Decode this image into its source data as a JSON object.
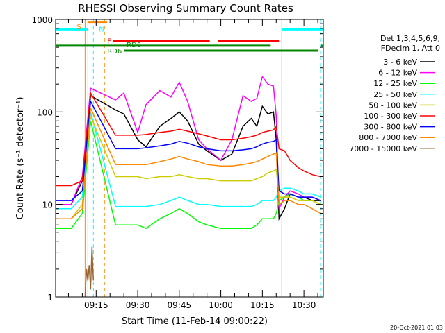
{
  "chart_data": {
    "type": "line",
    "title": "RHESSI Observing Summary Count Rates",
    "xlabel": "Start Time (11-Feb-14 09:00:22)",
    "ylabel": "Count Rate (s⁻¹ detector⁻¹)",
    "x_range": [
      "09:00:22",
      "10:37:00"
    ],
    "ylim": [
      1,
      1000
    ],
    "yscale": "log",
    "x_ticks": [
      "09:15",
      "09:30",
      "09:45",
      "10:00",
      "10:15",
      "10:30"
    ],
    "y_ticks": [
      "1",
      "10",
      "100",
      "1000"
    ],
    "grid": false,
    "legend_position": "right",
    "legend_header": [
      "Det 1,3,4,5,6,9,",
      "FDecim 1, Att 0"
    ],
    "footer_date": "20-Oct-2021 01:03",
    "series": [
      {
        "name": "3 - 6 keV",
        "color": "#000000",
        "x": [
          "09:00:22",
          "09:06",
          "09:10",
          "09:13",
          "09:22",
          "09:25",
          "09:30",
          "09:33",
          "09:38",
          "09:42",
          "09:45",
          "09:48",
          "09:52",
          "09:55",
          "10:00",
          "10:04",
          "10:08",
          "10:11",
          "10:13",
          "10:15",
          "10:17",
          "10:19",
          "10:20",
          "10:21",
          "10:23",
          "10:25",
          "10:28",
          "10:30",
          "10:33",
          "10:36"
        ],
        "y": [
          10,
          10,
          18,
          150,
          105,
          95,
          50,
          42,
          70,
          85,
          100,
          80,
          45,
          38,
          30,
          35,
          70,
          85,
          70,
          115,
          95,
          100,
          50,
          7,
          9,
          13,
          12,
          12,
          11,
          11
        ]
      },
      {
        "name": "6 - 12 keV",
        "color": "#ff00ff",
        "x": [
          "09:00:22",
          "09:06",
          "09:10",
          "09:13",
          "09:22",
          "09:25",
          "09:30",
          "09:33",
          "09:38",
          "09:42",
          "09:45",
          "09:48",
          "09:52",
          "09:55",
          "10:00",
          "10:04",
          "10:08",
          "10:11",
          "10:13",
          "10:15",
          "10:17",
          "10:19",
          "10:20",
          "10:21",
          "10:23",
          "10:25",
          "10:28",
          "10:30",
          "10:33",
          "10:36"
        ],
        "y": [
          10,
          10,
          20,
          180,
          135,
          160,
          60,
          120,
          170,
          145,
          210,
          130,
          50,
          40,
          30,
          50,
          150,
          130,
          140,
          240,
          200,
          190,
          90,
          9,
          12,
          14,
          13,
          12,
          12,
          11
        ]
      },
      {
        "name": "12 - 25 keV",
        "color": "#00ff00",
        "x": [
          "09:00:22",
          "09:06",
          "09:10",
          "09:13",
          "09:22",
          "09:25",
          "09:30",
          "09:33",
          "09:38",
          "09:42",
          "09:45",
          "09:48",
          "09:52",
          "09:55",
          "10:00",
          "10:04",
          "10:08",
          "10:11",
          "10:13",
          "10:15",
          "10:17",
          "10:19",
          "10:20",
          "10:21",
          "10:23",
          "10:25",
          "10:28",
          "10:30",
          "10:33",
          "10:36"
        ],
        "y": [
          5.5,
          5.5,
          8,
          80,
          6,
          6,
          6,
          5.5,
          7,
          8,
          9,
          8,
          6.5,
          6,
          5.5,
          5.5,
          5.5,
          5.5,
          6,
          7,
          7,
          7,
          8,
          11,
          12,
          13,
          12,
          11,
          11,
          10
        ]
      },
      {
        "name": "25 - 50 keV",
        "color": "#00ffff",
        "x": [
          "09:00:22",
          "09:06",
          "09:10",
          "09:13",
          "09:22",
          "09:25",
          "09:30",
          "09:33",
          "09:38",
          "09:42",
          "09:45",
          "09:48",
          "09:52",
          "09:55",
          "10:00",
          "10:04",
          "10:08",
          "10:11",
          "10:13",
          "10:15",
          "10:17",
          "10:19",
          "10:20",
          "10:21",
          "10:23",
          "10:25",
          "10:28",
          "10:30",
          "10:33",
          "10:36"
        ],
        "y": [
          9,
          9,
          12,
          100,
          9.5,
          9.5,
          9.5,
          9.5,
          10,
          11,
          12,
          11,
          10,
          10,
          9.5,
          9.5,
          9.5,
          9.5,
          10,
          11,
          11,
          11,
          12,
          14,
          15,
          15,
          14,
          13,
          13,
          12
        ]
      },
      {
        "name": "50 - 100 keV",
        "color": "#cccc00",
        "x": [
          "09:00:22",
          "09:06",
          "09:10",
          "09:13",
          "09:22",
          "09:25",
          "09:30",
          "09:33",
          "09:38",
          "09:42",
          "09:45",
          "09:48",
          "09:52",
          "09:55",
          "10:00",
          "10:04",
          "10:08",
          "10:11",
          "10:13",
          "10:15",
          "10:17",
          "10:19",
          "10:20",
          "10:21",
          "10:23",
          "10:25",
          "10:28",
          "10:30",
          "10:33",
          "10:36"
        ],
        "y": [
          7,
          7,
          10,
          90,
          20,
          20,
          20,
          19,
          20,
          20,
          21,
          20,
          19,
          19,
          18,
          18,
          18,
          18,
          19,
          20,
          22,
          23,
          24,
          12,
          12,
          12,
          11,
          11,
          11,
          10
        ]
      },
      {
        "name": "100 - 300 keV",
        "color": "#ff0000",
        "x": [
          "09:00:22",
          "09:06",
          "09:10",
          "09:13",
          "09:22",
          "09:25",
          "09:30",
          "09:33",
          "09:38",
          "09:42",
          "09:45",
          "09:48",
          "09:52",
          "09:55",
          "10:00",
          "10:04",
          "10:08",
          "10:11",
          "10:13",
          "10:15",
          "10:17",
          "10:19",
          "10:20",
          "10:21",
          "10:23",
          "10:25",
          "10:28",
          "10:30",
          "10:33",
          "10:36"
        ],
        "y": [
          16,
          16,
          18,
          160,
          56,
          56,
          56,
          57,
          60,
          62,
          65,
          62,
          58,
          55,
          50,
          50,
          52,
          54,
          56,
          60,
          62,
          64,
          70,
          40,
          38,
          30,
          25,
          23,
          21,
          20
        ]
      },
      {
        "name": "300 - 800 keV",
        "color": "#0000ff",
        "x": [
          "09:00:22",
          "09:06",
          "09:10",
          "09:13",
          "09:22",
          "09:25",
          "09:30",
          "09:33",
          "09:38",
          "09:42",
          "09:45",
          "09:48",
          "09:52",
          "09:55",
          "10:00",
          "10:04",
          "10:08",
          "10:11",
          "10:13",
          "10:15",
          "10:17",
          "10:19",
          "10:20",
          "10:21",
          "10:23",
          "10:25",
          "10:28",
          "10:30",
          "10:33",
          "10:36"
        ],
        "y": [
          11,
          11,
          14,
          130,
          40,
          40,
          40,
          41,
          43,
          45,
          48,
          46,
          42,
          40,
          38,
          38,
          39,
          40,
          42,
          45,
          47,
          48,
          50,
          14,
          13,
          13,
          12,
          12,
          12,
          11
        ]
      },
      {
        "name": "800 - 7000 keV",
        "color": "#ff8800",
        "x": [
          "09:00:22",
          "09:06",
          "09:10",
          "09:13",
          "09:22",
          "09:25",
          "09:30",
          "09:33",
          "09:38",
          "09:42",
          "09:45",
          "09:48",
          "09:52",
          "09:55",
          "10:00",
          "10:04",
          "10:08",
          "10:11",
          "10:13",
          "10:15",
          "10:17",
          "10:19",
          "10:20",
          "10:21",
          "10:23",
          "10:25",
          "10:28",
          "10:30",
          "10:33",
          "10:36"
        ],
        "y": [
          7,
          7,
          9,
          110,
          27,
          27,
          27,
          27,
          29,
          31,
          33,
          31,
          29,
          27,
          26,
          26,
          27,
          28,
          29,
          31,
          33,
          35,
          36,
          10,
          11,
          11,
          10,
          10,
          9,
          8
        ]
      },
      {
        "name": "7000 - 15000 keV",
        "color": "#996633",
        "x": [
          "09:11",
          "09:11:30",
          "09:12",
          "09:12:30",
          "09:13",
          "09:13:30",
          "09:14"
        ],
        "y": [
          1,
          2,
          1.5,
          2.2,
          1.2,
          3.5,
          1.5
        ]
      }
    ],
    "annotations": [
      {
        "text": "S",
        "color": "#ff8800"
      },
      {
        "text": "N",
        "color": "#00ffff"
      },
      {
        "text": "F",
        "color": "#ff0000"
      },
      {
        "text": "RD6",
        "color": "#008800"
      },
      {
        "text": "RD6",
        "color": "#008800"
      }
    ],
    "flag_bars": [
      {
        "label": "S",
        "color": "#ff8800",
        "y": 940,
        "segments": [
          [
            "09:12",
            "09:19"
          ]
        ]
      },
      {
        "label": "N",
        "color": "#00ffff",
        "y": 780,
        "segments": [
          [
            "09:00:22",
            "09:12"
          ],
          [
            "10:22",
            "10:37"
          ]
        ]
      },
      {
        "label": "F",
        "color": "#ff0000",
        "y": 590,
        "segments": [
          [
            "09:21",
            "09:56"
          ],
          [
            "09:59",
            "10:21"
          ]
        ]
      },
      {
        "label": "RD6",
        "color": "#008800",
        "y": 520,
        "segments": [
          [
            "09:00:22",
            "10:18"
          ],
          [
            "10:36",
            "10:37"
          ]
        ]
      },
      {
        "label": "RD6",
        "color": "#008800",
        "y": 460,
        "segments": [
          [
            "09:25",
            "10:35"
          ]
        ]
      }
    ],
    "vertical_markers": [
      {
        "x": "09:11",
        "color": "#ff8800",
        "style": "solid"
      },
      {
        "x": "09:12",
        "color": "#00ffff",
        "style": "solid"
      },
      {
        "x": "09:14",
        "color": "#00ffff",
        "style": "dashed"
      },
      {
        "x": "09:18",
        "color": "#ff8800",
        "style": "dashed"
      },
      {
        "x": "10:22",
        "color": "#00ffff",
        "style": "solid"
      },
      {
        "x": "10:36",
        "color": "#00ffff",
        "style": "dashed"
      }
    ]
  }
}
